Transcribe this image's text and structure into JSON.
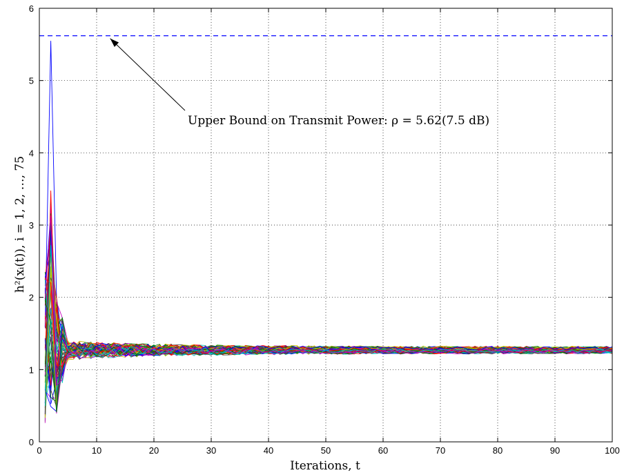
{
  "chart_data": {
    "type": "line",
    "title": "",
    "xlabel": "Iterations, t",
    "ylabel": "h²(xᵢ(t)), i = 1, 2, …, 75",
    "xlim": [
      0,
      100
    ],
    "ylim": [
      0,
      6
    ],
    "xticks": [
      "0",
      "10",
      "20",
      "30",
      "40",
      "50",
      "60",
      "70",
      "80",
      "90",
      "100"
    ],
    "yticks": [
      "0",
      "1",
      "2",
      "3",
      "4",
      "5",
      "6"
    ],
    "grid": true,
    "num_series": 75,
    "series_colors": [
      "#0000ff",
      "#008000",
      "#ff0000",
      "#00bfbf",
      "#bf00bf",
      "#bfbf00",
      "#404040"
    ],
    "convergence_value": 1.27,
    "peak_value": 5.55,
    "peak_iteration": 2,
    "upper_bound": {
      "value": 5.62,
      "color": "#0000ff",
      "style": "dashed"
    },
    "annotation": {
      "text": "Upper Bound on Transmit Power: ρ = 5.62(7.5 dB)",
      "points_to": {
        "x": 12,
        "y": 5.62
      }
    }
  }
}
